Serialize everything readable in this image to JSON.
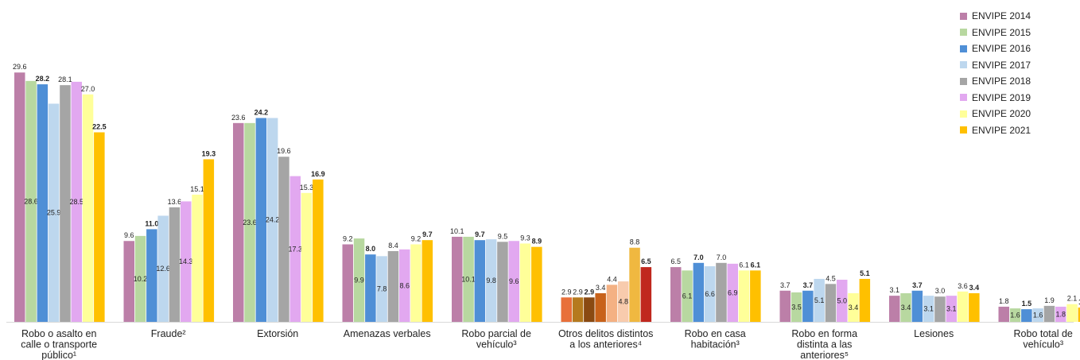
{
  "chart_data": {
    "type": "bar",
    "categories": [
      [
        "Robo o asalto en",
        "calle o transporte",
        "público¹"
      ],
      [
        "Fraude²"
      ],
      [
        "Extorsión"
      ],
      [
        "Amenazas verbales"
      ],
      [
        "Robo parcial de",
        "vehículo³"
      ],
      [
        "Otros delitos distintos",
        "a los anteriores⁴"
      ],
      [
        "Robo en casa",
        "habitación³"
      ],
      [
        "Robo en forma",
        "distinta a las",
        "anteriores⁵"
      ],
      [
        "Lesiones"
      ],
      [
        "Robo total de",
        "vehículo³"
      ]
    ],
    "series": [
      {
        "name": "ENVIPE 2014",
        "color": "#BC7FA8",
        "values": [
          29.6,
          9.6,
          23.6,
          9.2,
          10.1,
          2.9,
          6.5,
          3.7,
          3.1,
          1.8
        ]
      },
      {
        "name": "ENVIPE 2015",
        "color": "#B8D8A0",
        "values": [
          28.6,
          10.2,
          23.6,
          9.9,
          10.1,
          2.9,
          6.1,
          3.5,
          3.4,
          1.6
        ]
      },
      {
        "name": "ENVIPE 2016",
        "color": "#4F8FD6",
        "values": [
          28.2,
          11.0,
          24.2,
          8.0,
          9.7,
          2.9,
          7.0,
          3.7,
          3.7,
          1.5
        ]
      },
      {
        "name": "ENVIPE 2017",
        "color": "#BDD7EE",
        "values": [
          25.9,
          12.6,
          24.2,
          7.8,
          9.8,
          3.4,
          6.6,
          5.1,
          3.1,
          1.6
        ]
      },
      {
        "name": "ENVIPE 2018",
        "color": "#A5A5A5",
        "values": [
          28.1,
          13.6,
          19.6,
          8.4,
          9.5,
          4.4,
          7.0,
          4.5,
          3.0,
          1.9
        ]
      },
      {
        "name": "ENVIPE 2019",
        "color": "#E2A8F0",
        "values": [
          28.5,
          14.3,
          17.3,
          8.6,
          9.6,
          4.8,
          6.9,
          5.0,
          3.1,
          1.8
        ]
      },
      {
        "name": "ENVIPE 2020",
        "color": "#FFFF99",
        "values": [
          27.0,
          15.1,
          15.3,
          9.2,
          9.3,
          8.8,
          6.1,
          3.4,
          3.6,
          2.1
        ]
      },
      {
        "name": "ENVIPE 2021",
        "color": "#FFC000",
        "values": [
          22.5,
          19.3,
          16.9,
          9.7,
          8.9,
          6.5,
          6.1,
          5.1,
          3.4,
          1.7
        ]
      }
    ],
    "other_group_colors": [
      "#E8703A",
      "#B57A1E",
      "#8A4A12",
      "#C8621A",
      "#F4B183",
      "#F8CBAD",
      "#F0B840",
      "#C0281E"
    ],
    "label_inside_bar": [
      [
        false,
        true,
        false,
        true,
        false,
        true,
        false,
        false
      ],
      [
        false,
        true,
        false,
        true,
        false,
        true,
        false,
        false
      ],
      [
        false,
        true,
        false,
        true,
        false,
        true,
        false,
        false
      ],
      [
        false,
        true,
        false,
        true,
        false,
        true,
        false,
        false
      ],
      [
        false,
        true,
        false,
        true,
        false,
        true,
        false,
        false
      ],
      [
        false,
        false,
        false,
        false,
        false,
        true,
        false,
        false
      ],
      [
        false,
        true,
        false,
        true,
        false,
        true,
        false,
        false
      ],
      [
        false,
        true,
        false,
        true,
        false,
        true,
        true,
        false
      ],
      [
        false,
        true,
        false,
        true,
        false,
        true,
        false,
        false
      ],
      [
        false,
        true,
        false,
        true,
        false,
        true,
        false,
        false
      ]
    ],
    "bold_series": [
      2,
      7
    ],
    "legend_position": "top-right",
    "grid": false
  }
}
